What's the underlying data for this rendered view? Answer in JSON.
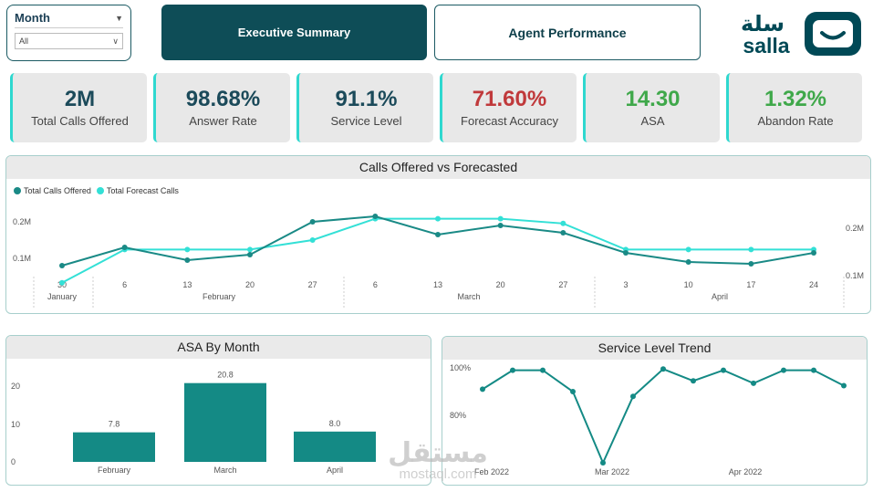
{
  "slicer": {
    "title": "Month",
    "selected": "All"
  },
  "nav": {
    "executive": "Executive Summary",
    "agent": "Agent Performance"
  },
  "logo": {
    "text": "salla",
    "arabic": "سلة",
    "color": "#004956"
  },
  "kpis": [
    {
      "value": "2M",
      "label": "Total Calls Offered",
      "color": "#1b4a5a"
    },
    {
      "value": "98.68%",
      "label": "Answer Rate",
      "color": "#1b4a5a"
    },
    {
      "value": "91.1%",
      "label": "Service Level",
      "color": "#1b4a5a"
    },
    {
      "value": "71.60%",
      "label": "Forecast Accuracy",
      "color": "#c0393b"
    },
    {
      "value": "14.30",
      "label": "ASA",
      "color": "#3fa84a"
    },
    {
      "value": "1.32%",
      "label": "Abandon Rate",
      "color": "#3fa84a"
    }
  ],
  "watermark": {
    "arabic": "مستقل",
    "latin": "mostaql.com"
  },
  "chart_data": [
    {
      "type": "line",
      "title": "Calls Offered vs Forecasted",
      "x": [
        "30",
        "6",
        "13",
        "20",
        "27",
        "6",
        "13",
        "20",
        "27",
        "3",
        "10",
        "17",
        "24"
      ],
      "month_labels": [
        "January",
        "February",
        "March",
        "April"
      ],
      "series": [
        {
          "name": "Total Calls Offered",
          "color": "#1a8a86",
          "axis": "left",
          "values": [
            0.08,
            0.13,
            0.095,
            0.11,
            0.2,
            0.215,
            0.165,
            0.19,
            0.17,
            0.115,
            0.09,
            0.085,
            0.115
          ]
        },
        {
          "name": "Total Forecast Calls",
          "color": "#33e0d6",
          "axis": "right",
          "values": [
            0.085,
            0.155,
            0.155,
            0.155,
            0.175,
            0.22,
            0.22,
            0.22,
            0.21,
            0.155,
            0.155,
            0.155,
            0.155
          ]
        }
      ],
      "y_left_ticks": [
        "0.1M",
        "0.2M"
      ],
      "y_right_ticks": [
        "0.1M",
        "0.2M"
      ],
      "legend": "top-left"
    },
    {
      "type": "bar",
      "title": "ASA By Month",
      "categories": [
        "February",
        "March",
        "April"
      ],
      "values": [
        7.8,
        20.8,
        8.0
      ],
      "data_labels": [
        "7.8",
        "20.8",
        "8.0"
      ],
      "y_ticks": [
        "0",
        "10",
        "20"
      ],
      "ylim": [
        0,
        24
      ],
      "color": "#148a85"
    },
    {
      "type": "line",
      "title": "Service Level Trend",
      "values": [
        91,
        99,
        99,
        90,
        60,
        88,
        99.5,
        94.5,
        99,
        93.5,
        99,
        99,
        92.5
      ],
      "y_ticks": [
        "80%",
        "100%"
      ],
      "x_ticks": [
        "Feb 2022",
        "Mar 2022",
        "Apr 2022"
      ],
      "color": "#148a85"
    }
  ]
}
